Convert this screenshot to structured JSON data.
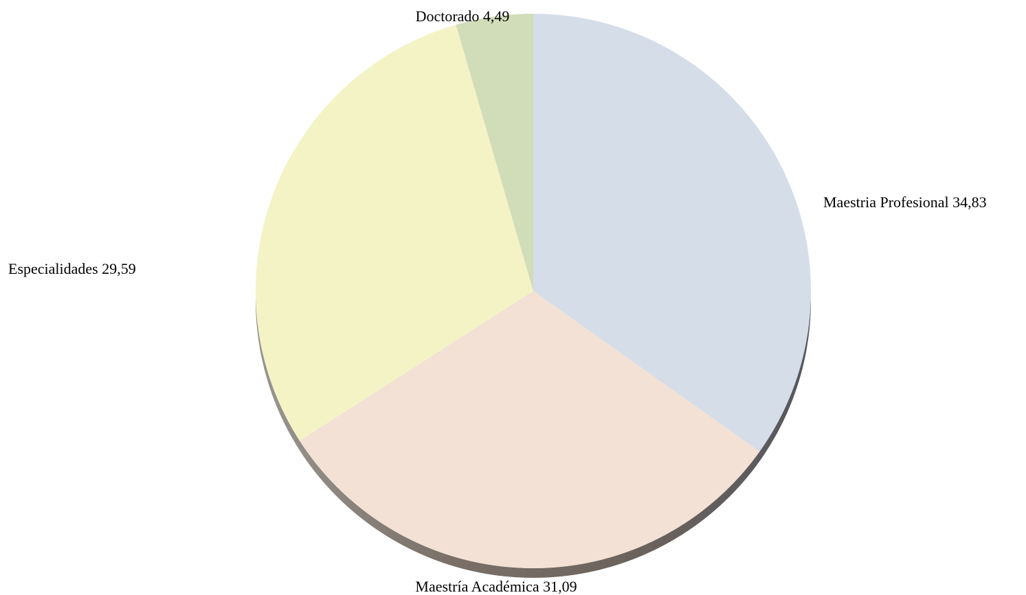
{
  "chart_data": {
    "type": "pie",
    "title": "",
    "slices": [
      {
        "label": "Maestria Profesional 34,83",
        "value": 34.83,
        "color": "#d5dde9"
      },
      {
        "label": "Maestría Académica 31,09",
        "value": 31.09,
        "color": "#f2e1d4"
      },
      {
        "label": "Especialidades 29,59",
        "value": 29.59,
        "color": "#f4f3c6"
      },
      {
        "label": "Doctorado 4,49",
        "value": 4.49,
        "color": "#d1dcb8"
      }
    ],
    "start_angle": "12 o'clock",
    "direction": "clockwise",
    "style": "3d-tilted",
    "legend": "none"
  }
}
